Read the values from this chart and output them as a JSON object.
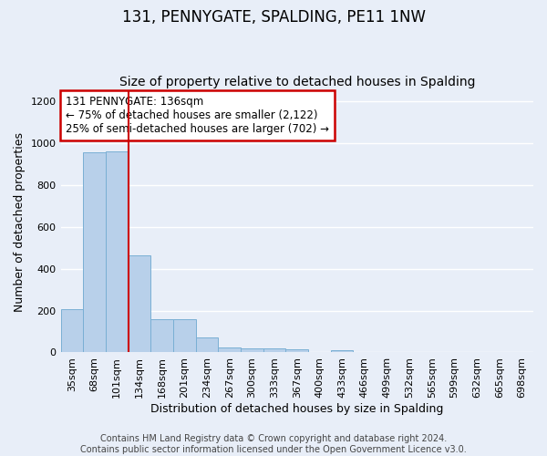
{
  "title": "131, PENNYGATE, SPALDING, PE11 1NW",
  "subtitle": "Size of property relative to detached houses in Spalding",
  "xlabel": "Distribution of detached houses by size in Spalding",
  "ylabel": "Number of detached properties",
  "categories": [
    "35sqm",
    "68sqm",
    "101sqm",
    "134sqm",
    "168sqm",
    "201sqm",
    "234sqm",
    "267sqm",
    "300sqm",
    "333sqm",
    "367sqm",
    "400sqm",
    "433sqm",
    "466sqm",
    "499sqm",
    "532sqm",
    "565sqm",
    "599sqm",
    "632sqm",
    "665sqm",
    "698sqm"
  ],
  "values": [
    205,
    955,
    960,
    465,
    160,
    160,
    70,
    25,
    20,
    18,
    13,
    0,
    12,
    0,
    0,
    0,
    0,
    0,
    0,
    0,
    0
  ],
  "bar_color": "#b8d0ea",
  "bar_edge_color": "#7aafd4",
  "background_color": "#e8eef8",
  "grid_color": "#ffffff",
  "vline_x": 3.0,
  "vline_color": "#cc0000",
  "annotation_text": "131 PENNYGATE: 136sqm\n← 75% of detached houses are smaller (2,122)\n25% of semi-detached houses are larger (702) →",
  "annotation_box_color": "#ffffff",
  "annotation_box_edge": "#cc0000",
  "footer_text": "Contains HM Land Registry data © Crown copyright and database right 2024.\nContains public sector information licensed under the Open Government Licence v3.0.",
  "ylim": [
    0,
    1250
  ],
  "yticks": [
    0,
    200,
    400,
    600,
    800,
    1000,
    1200
  ],
  "title_fontsize": 12,
  "subtitle_fontsize": 10,
  "axis_label_fontsize": 9,
  "tick_fontsize": 8,
  "annotation_fontsize": 8.5,
  "footer_fontsize": 7.0
}
